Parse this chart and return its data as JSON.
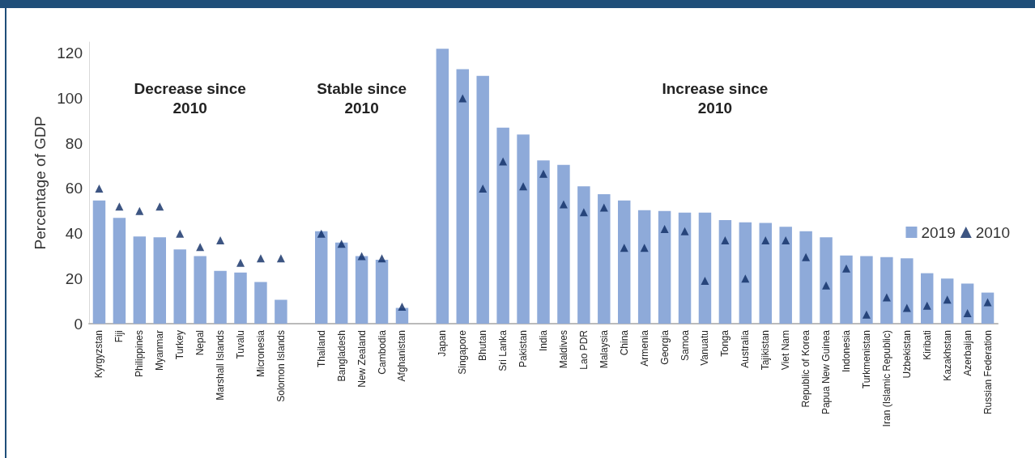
{
  "chart_data": {
    "type": "bar",
    "ylabel": "Percentage of GDP",
    "categories": [
      "Kyrgyzstan",
      "Fiji",
      "Philippines",
      "Myanmar",
      "Turkey",
      "Nepal",
      "Marshall Islands",
      "Tuvalu",
      "Micronesia",
      "Solomon Islands",
      null,
      "Thailand",
      "Bangladesh",
      "New Zealand",
      "Cambodia",
      "Afghanistan",
      null,
      "Japan",
      "Singapore",
      "Bhutan",
      "Sri Lanka",
      "Pakistan",
      "India",
      "Maldives",
      "Lao PDR",
      "Malaysia",
      "China",
      "Armenia",
      "Georgia",
      "Samoa",
      "Vanuatu",
      "Tonga",
      "Australia",
      "Tajikistan",
      "Viet Nam",
      "Republic of Korea",
      "Papua New Guinea",
      "Indonesia",
      "Turkmenistan",
      "Iran (Islamic Republic)",
      "Uzbekistan",
      "Kiribati",
      "Kazakhstan",
      "Azerbaijan",
      "Russian Federation"
    ],
    "series": [
      {
        "name": "2019",
        "color": "#8eaad9",
        "values": [
          54.7,
          47,
          38.7,
          38.3,
          33,
          30,
          23.4,
          22.7,
          18.5,
          10.6,
          null,
          41,
          36,
          30,
          28.4,
          7,
          null,
          122,
          113,
          110,
          87,
          84,
          72.5,
          70.5,
          61,
          57.5,
          54.7,
          50.4,
          50,
          49.3,
          49.3,
          46,
          45,
          44.7,
          43,
          41,
          38.3,
          30.3,
          30,
          29.5,
          29,
          22.4,
          20,
          17.8,
          13.8
        ]
      },
      {
        "name": "2010",
        "type": "scatter",
        "color": "#0d2b63",
        "values": [
          60,
          52,
          50,
          52,
          40,
          34,
          37,
          27,
          29,
          29,
          null,
          40,
          35.5,
          30,
          29,
          7.5,
          null,
          null,
          100,
          60,
          72,
          61,
          66.5,
          53,
          49.5,
          51.5,
          33.7,
          33.7,
          42,
          41,
          19,
          37,
          20,
          37,
          37,
          29.5,
          17,
          24.5,
          4,
          11.7,
          7,
          8,
          10.7,
          4.7,
          9.5
        ]
      }
    ],
    "ylim": [
      0,
      125
    ],
    "yticks": [
      0,
      20,
      40,
      60,
      80,
      100,
      120
    ],
    "grid": false,
    "legend": "right",
    "marker": "triangle",
    "annotations": [
      "Decrease since\n2010",
      "Stable since\n2010",
      "Increase since\n2010"
    ]
  }
}
